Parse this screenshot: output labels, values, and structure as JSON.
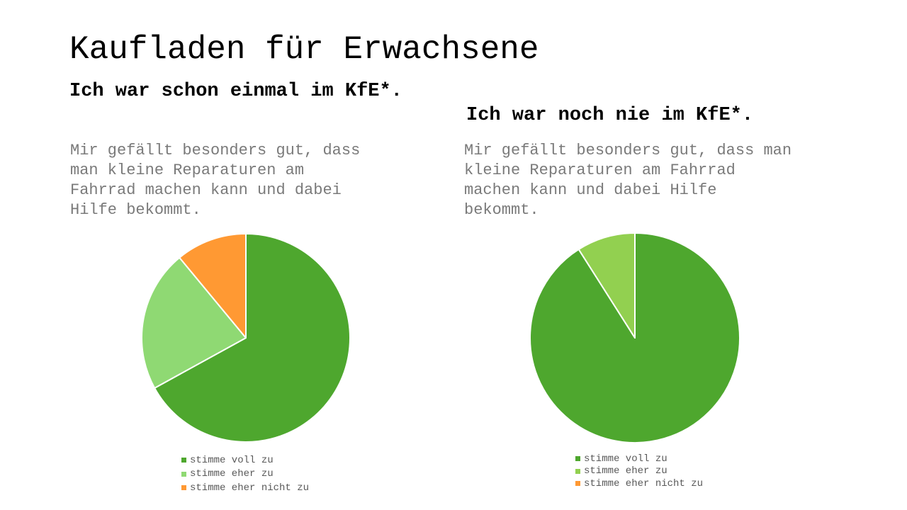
{
  "title": "Kaufladen für Erwachsene",
  "chart_data": [
    {
      "type": "pie",
      "heading": "Ich war schon einmal im KfE*.",
      "subtitle": "Mir gefällt besonders gut, dass man kleine Reparaturen am Fahrrad machen kann und dabei Hilfe bekommt.",
      "categories": [
        "stimme voll zu",
        "stimme eher zu",
        "stimme eher nicht zu"
      ],
      "values": [
        67,
        22,
        11
      ],
      "colors": [
        "#4ea72e",
        "#8fd973",
        "#ff9933"
      ],
      "legend_position": "bottom"
    },
    {
      "type": "pie",
      "heading": "Ich war noch nie im KfE*.",
      "subtitle": "Mir gefällt besonders gut, dass man kleine Reparaturen am Fahrrad machen kann und dabei Hilfe bekommt.",
      "categories": [
        "stimme voll zu",
        "stimme eher zu",
        "stimme eher nicht zu"
      ],
      "values": [
        91,
        9,
        0
      ],
      "colors": [
        "#4ea72e",
        "#92d050",
        "#ff9933"
      ],
      "legend_position": "bottom"
    }
  ]
}
